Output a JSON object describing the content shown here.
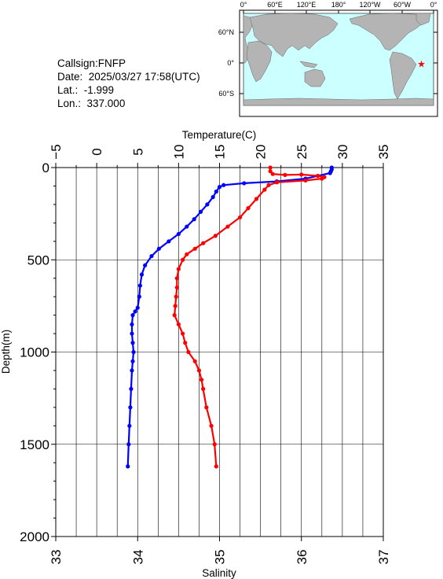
{
  "info": {
    "callsign": "Callsign:FNFP",
    "date": "Date:  2025/03/27 17:58(UTC)",
    "lat": "Lat.:  -1.999",
    "lon": "Lon.:  337.000"
  },
  "map": {
    "top_labels": [
      "0°",
      "60°E",
      "120°E",
      "180°",
      "120°W",
      "60°W",
      "0°"
    ],
    "left_labels": [
      "60°N",
      "0°",
      "60°S"
    ],
    "ocean_color": "#ccffff",
    "land_color": "#b4b4b4",
    "marker": {
      "lon": 337.0,
      "lat": -1.999,
      "color": "#ff0000",
      "icon": "star-icon"
    }
  },
  "chart_data": {
    "type": "line",
    "y_axis": {
      "label": "Depth(m)",
      "range": [
        0,
        2000
      ],
      "ticks": [
        0,
        500,
        1000,
        1500,
        2000
      ],
      "inverted": true
    },
    "top_axis": {
      "label": "Temperature(C)",
      "range": [
        -5,
        35
      ],
      "ticks": [
        -5,
        0,
        5,
        10,
        15,
        20,
        25,
        30,
        35
      ]
    },
    "bottom_axis": {
      "label": "Salinity",
      "range": [
        33,
        37
      ],
      "ticks": [
        33,
        34,
        35,
        36,
        37
      ]
    },
    "grid": true,
    "series": [
      {
        "axis": "temperature",
        "color": "#0000ff",
        "points": [
          [
            28.7,
            0
          ],
          [
            28.7,
            10
          ],
          [
            28.6,
            20
          ],
          [
            28.5,
            30
          ],
          [
            27.0,
            45
          ],
          [
            25.5,
            60
          ],
          [
            22.0,
            75
          ],
          [
            18.0,
            85
          ],
          [
            15.5,
            95
          ],
          [
            15.0,
            105
          ],
          [
            14.6,
            130
          ],
          [
            14.2,
            160
          ],
          [
            13.5,
            200
          ],
          [
            12.7,
            240
          ],
          [
            11.9,
            280
          ],
          [
            11.0,
            320
          ],
          [
            10.0,
            360
          ],
          [
            8.8,
            400
          ],
          [
            7.6,
            440
          ],
          [
            6.7,
            480
          ],
          [
            5.9,
            530
          ],
          [
            5.5,
            580
          ],
          [
            5.3,
            640
          ],
          [
            5.2,
            700
          ],
          [
            5.0,
            760
          ],
          [
            4.7,
            780
          ],
          [
            4.4,
            800
          ],
          [
            4.3,
            850
          ],
          [
            4.3,
            900
          ],
          [
            4.4,
            950
          ],
          [
            4.5,
            1000
          ],
          [
            4.4,
            1050
          ],
          [
            4.3,
            1100
          ],
          [
            4.2,
            1200
          ],
          [
            4.1,
            1300
          ],
          [
            4.0,
            1400
          ],
          [
            3.9,
            1500
          ],
          [
            3.8,
            1620
          ]
        ]
      },
      {
        "axis": "salinity",
        "color": "#ff0000",
        "points": [
          [
            35.62,
            0
          ],
          [
            35.62,
            20
          ],
          [
            35.65,
            35
          ],
          [
            35.8,
            40
          ],
          [
            36.0,
            38
          ],
          [
            36.2,
            45
          ],
          [
            36.28,
            52
          ],
          [
            36.25,
            60
          ],
          [
            36.05,
            70
          ],
          [
            35.7,
            80
          ],
          [
            35.6,
            95
          ],
          [
            35.55,
            120
          ],
          [
            35.45,
            170
          ],
          [
            35.35,
            220
          ],
          [
            35.25,
            270
          ],
          [
            35.1,
            320
          ],
          [
            34.95,
            370
          ],
          [
            34.8,
            410
          ],
          [
            34.7,
            440
          ],
          [
            34.6,
            470
          ],
          [
            34.55,
            500
          ],
          [
            34.5,
            550
          ],
          [
            34.48,
            600
          ],
          [
            34.48,
            650
          ],
          [
            34.47,
            700
          ],
          [
            34.46,
            750
          ],
          [
            34.45,
            800
          ],
          [
            34.5,
            850
          ],
          [
            34.55,
            900
          ],
          [
            34.58,
            950
          ],
          [
            34.62,
            1000
          ],
          [
            34.7,
            1050
          ],
          [
            34.75,
            1100
          ],
          [
            34.78,
            1150
          ],
          [
            34.8,
            1200
          ],
          [
            34.84,
            1300
          ],
          [
            34.9,
            1400
          ],
          [
            34.94,
            1500
          ],
          [
            34.96,
            1620
          ]
        ]
      }
    ]
  }
}
